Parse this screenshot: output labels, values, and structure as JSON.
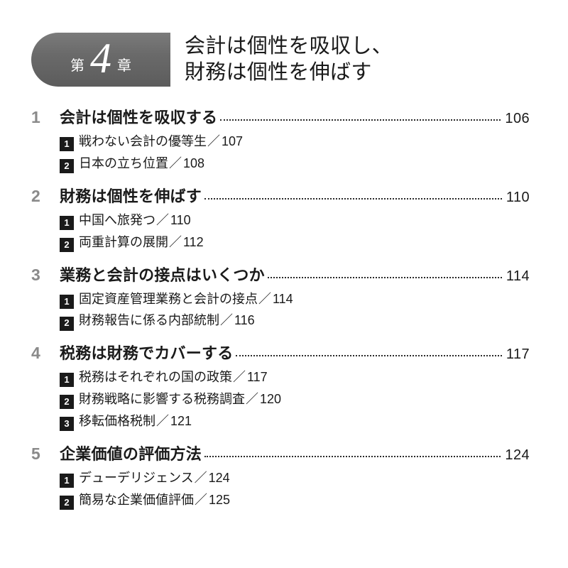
{
  "chapter": {
    "prefix": "第",
    "number": "4",
    "suffix": "章",
    "title_line1": "会計は個性を吸収し、",
    "title_line2": "財務は個性を伸ばす"
  },
  "sections": [
    {
      "num": "1",
      "title": "会計は個性を吸収する",
      "page": "106",
      "subs": [
        {
          "n": "1",
          "title": "戦わない会計の優等生",
          "page": "107"
        },
        {
          "n": "2",
          "title": "日本の立ち位置",
          "page": "108"
        }
      ]
    },
    {
      "num": "2",
      "title": "財務は個性を伸ばす",
      "page": "110",
      "subs": [
        {
          "n": "1",
          "title": "中国へ旅発つ",
          "page": "110"
        },
        {
          "n": "2",
          "title": "両重計算の展開",
          "page": "112"
        }
      ]
    },
    {
      "num": "3",
      "title": "業務と会計の接点はいくつか",
      "page": "114",
      "subs": [
        {
          "n": "1",
          "title": "固定資産管理業務と会計の接点",
          "page": "114"
        },
        {
          "n": "2",
          "title": "財務報告に係る内部統制",
          "page": "116"
        }
      ]
    },
    {
      "num": "4",
      "title": "税務は財務でカバーする",
      "page": "117",
      "subs": [
        {
          "n": "1",
          "title": "税務はそれぞれの国の政策",
          "page": "117"
        },
        {
          "n": "2",
          "title": "財務戦略に影響する税務調査",
          "page": "120"
        },
        {
          "n": "3",
          "title": "移転価格税制",
          "page": "121"
        }
      ]
    },
    {
      "num": "5",
      "title": "企業価値の評価方法",
      "page": "124",
      "subs": [
        {
          "n": "1",
          "title": "デューデリジェンス",
          "page": "124"
        },
        {
          "n": "2",
          "title": "簡易な企業価値評価",
          "page": "125"
        }
      ]
    }
  ],
  "separator": "／"
}
